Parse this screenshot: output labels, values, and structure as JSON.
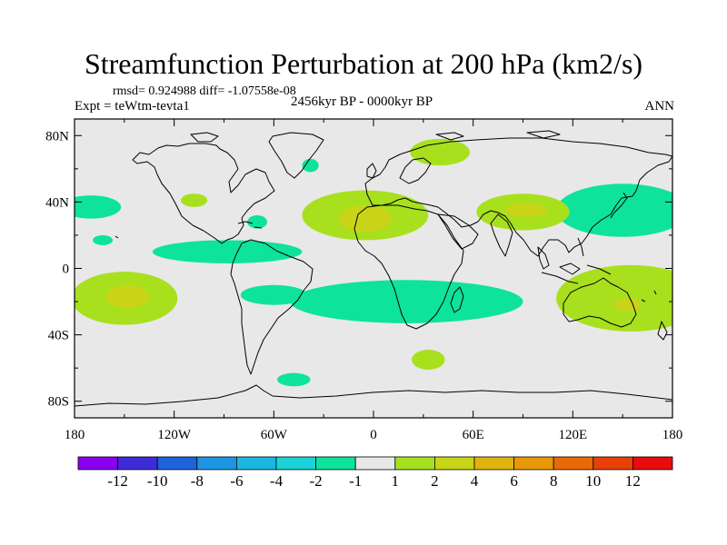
{
  "title": "Streamfunction Perturbation at 200 hPa (km2/s)",
  "stats": "rmsd= 0.924988 diff= -1.07558e-08",
  "experiment": "Expt = teWtm-tevta1",
  "period": "2456kyr BP - 0000kyr BP",
  "season": "ANN",
  "lat_labels": [
    "80N",
    "40N",
    "0",
    "40S",
    "80S"
  ],
  "lat_values": [
    80,
    40,
    0,
    -40,
    -80
  ],
  "lon_labels": [
    "180",
    "120W",
    "60W",
    "0",
    "60E",
    "120E",
    "180"
  ],
  "lon_values": [
    -180,
    -120,
    -60,
    0,
    60,
    120,
    180
  ],
  "colorbar": {
    "colors": [
      "#8a00ee",
      "#3f2bd8",
      "#1e62dc",
      "#1c96e0",
      "#1ab8e0",
      "#19d3d8",
      "#0ee39b",
      "#e8e8e8",
      "#a8e01e",
      "#c9d418",
      "#e0b40e",
      "#e89808",
      "#e86a06",
      "#e84006",
      "#e80c0c"
    ],
    "labels": [
      "-12",
      "-10",
      "-8",
      "-6",
      "-4",
      "-2",
      "-1",
      "1",
      "2",
      "4",
      "6",
      "8",
      "10",
      "12"
    ]
  },
  "anomalies": [
    {
      "name": "north-pacific-neg",
      "lon": 150,
      "lat": 35,
      "rlon": 32,
      "rlat": 12,
      "level": "-2"
    },
    {
      "name": "north-pacific-neg-edge",
      "lon": 150,
      "lat": 35,
      "rlon": 40,
      "rlat": 16,
      "level": "-1"
    },
    {
      "name": "west-atlantic-neg",
      "lon": -170,
      "lat": 37,
      "rlon": 18,
      "rlat": 7,
      "level": "-1"
    },
    {
      "name": "central-pacific-neg",
      "lon": -88,
      "lat": 10,
      "rlon": 45,
      "rlat": 7,
      "level": "-1"
    },
    {
      "name": "south-atlantic-neg",
      "lon": 20,
      "lat": -20,
      "rlon": 70,
      "rlat": 13,
      "level": "-1"
    },
    {
      "name": "east-brazil-neg",
      "lon": -60,
      "lat": -16,
      "rlon": 20,
      "rlat": 6,
      "level": "-1"
    },
    {
      "name": "southern-ocean-neg",
      "lon": -48,
      "lat": -67,
      "rlon": 10,
      "rlat": 4,
      "level": "-1"
    },
    {
      "name": "north-atlantic-neg",
      "lon": -38,
      "lat": 62,
      "rlon": 5,
      "rlat": 4,
      "level": "-1"
    },
    {
      "name": "caribbean-neg",
      "lon": -70,
      "lat": 28,
      "rlon": 6,
      "rlat": 4,
      "level": "-1"
    },
    {
      "name": "east-pacific-neg",
      "lon": -163,
      "lat": 17,
      "rlon": 6,
      "rlat": 3,
      "level": "-1"
    },
    {
      "name": "sahara-pos",
      "lon": -5,
      "lat": 32,
      "rlon": 38,
      "rlat": 15,
      "level": "2"
    },
    {
      "name": "sahara-core",
      "lon": -5,
      "lat": 30,
      "rlon": 16,
      "rlat": 8,
      "level": "4"
    },
    {
      "name": "south-asia-pos",
      "lon": 90,
      "lat": 34,
      "rlon": 28,
      "rlat": 11,
      "level": "2"
    },
    {
      "name": "south-asia-core",
      "lon": 92,
      "lat": 35,
      "rlon": 13,
      "rlat": 4,
      "level": "4"
    },
    {
      "name": "south-pacific-pos",
      "lon": -150,
      "lat": -18,
      "rlon": 32,
      "rlat": 16,
      "level": "2"
    },
    {
      "name": "south-pacific-core",
      "lon": -148,
      "lat": -17,
      "rlon": 13,
      "rlat": 7,
      "level": "4"
    },
    {
      "name": "australia-pos",
      "lon": 155,
      "lat": -18,
      "rlon": 45,
      "rlat": 20,
      "level": "2"
    },
    {
      "name": "australia-core",
      "lon": 153,
      "lat": -22,
      "rlon": 8,
      "rlat": 4,
      "level": "4"
    },
    {
      "name": "siberia-pos",
      "lon": 40,
      "lat": 70,
      "rlon": 18,
      "rlat": 8,
      "level": "2"
    },
    {
      "name": "south-indian-pos",
      "lon": 33,
      "lat": -55,
      "rlon": 10,
      "rlat": 6,
      "level": "2"
    },
    {
      "name": "north-america-pos",
      "lon": -108,
      "lat": 41,
      "rlon": 8,
      "rlat": 4,
      "level": "2"
    }
  ]
}
